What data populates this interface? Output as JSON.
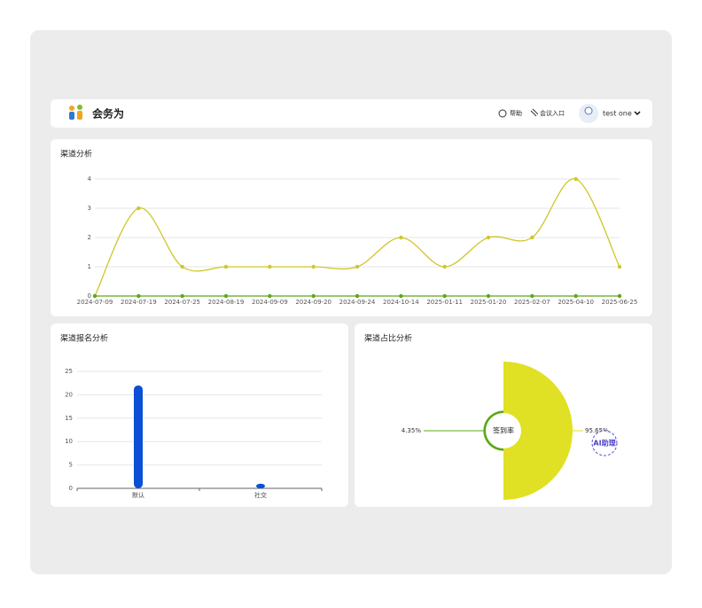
{
  "header": {
    "logo": "会务为",
    "help": "帮助",
    "meeting_entry": "会议入口",
    "user": "test one"
  },
  "badge": "AI助理",
  "chart_data": [
    {
      "type": "line",
      "title": "渠道分析",
      "categories": [
        "2024-07-09",
        "2024-07-19",
        "2024-07-25",
        "2024-08-19",
        "2024-09-09",
        "2024-09-20",
        "2024-09-24",
        "2024-10-14",
        "2025-01-11",
        "2025-01-20",
        "2025-02-07",
        "2025-04-10",
        "2025-06-25"
      ],
      "series": [
        {
          "color": "#cfc72a",
          "values": [
            0,
            3,
            1,
            1,
            1,
            1,
            1,
            2,
            1,
            2,
            2,
            4,
            1
          ]
        },
        {
          "color": "#5da81a",
          "values": [
            0,
            0,
            0,
            0,
            0,
            0,
            0,
            0,
            0,
            0,
            0,
            0,
            0
          ]
        }
      ],
      "ylim": [
        0,
        4
      ],
      "yticks": [
        0,
        1,
        2,
        3,
        4
      ],
      "grid": true,
      "smooth": true
    },
    {
      "type": "bar",
      "title": "渠道报名分析",
      "categories": [
        "默认",
        "社交"
      ],
      "values": [
        22,
        1
      ],
      "color": "#0a4fd6",
      "ylim": [
        0,
        25
      ],
      "yticks": [
        0,
        5,
        10,
        15,
        20,
        25
      ],
      "grid": true
    },
    {
      "type": "rose",
      "title": "渠道占比分析",
      "center_label": "签到率",
      "values": [
        4.35,
        95.65
      ],
      "value_labels": [
        "4.35%",
        "95.65%"
      ],
      "colors": [
        "#5da81a",
        "#e0e024"
      ]
    }
  ]
}
